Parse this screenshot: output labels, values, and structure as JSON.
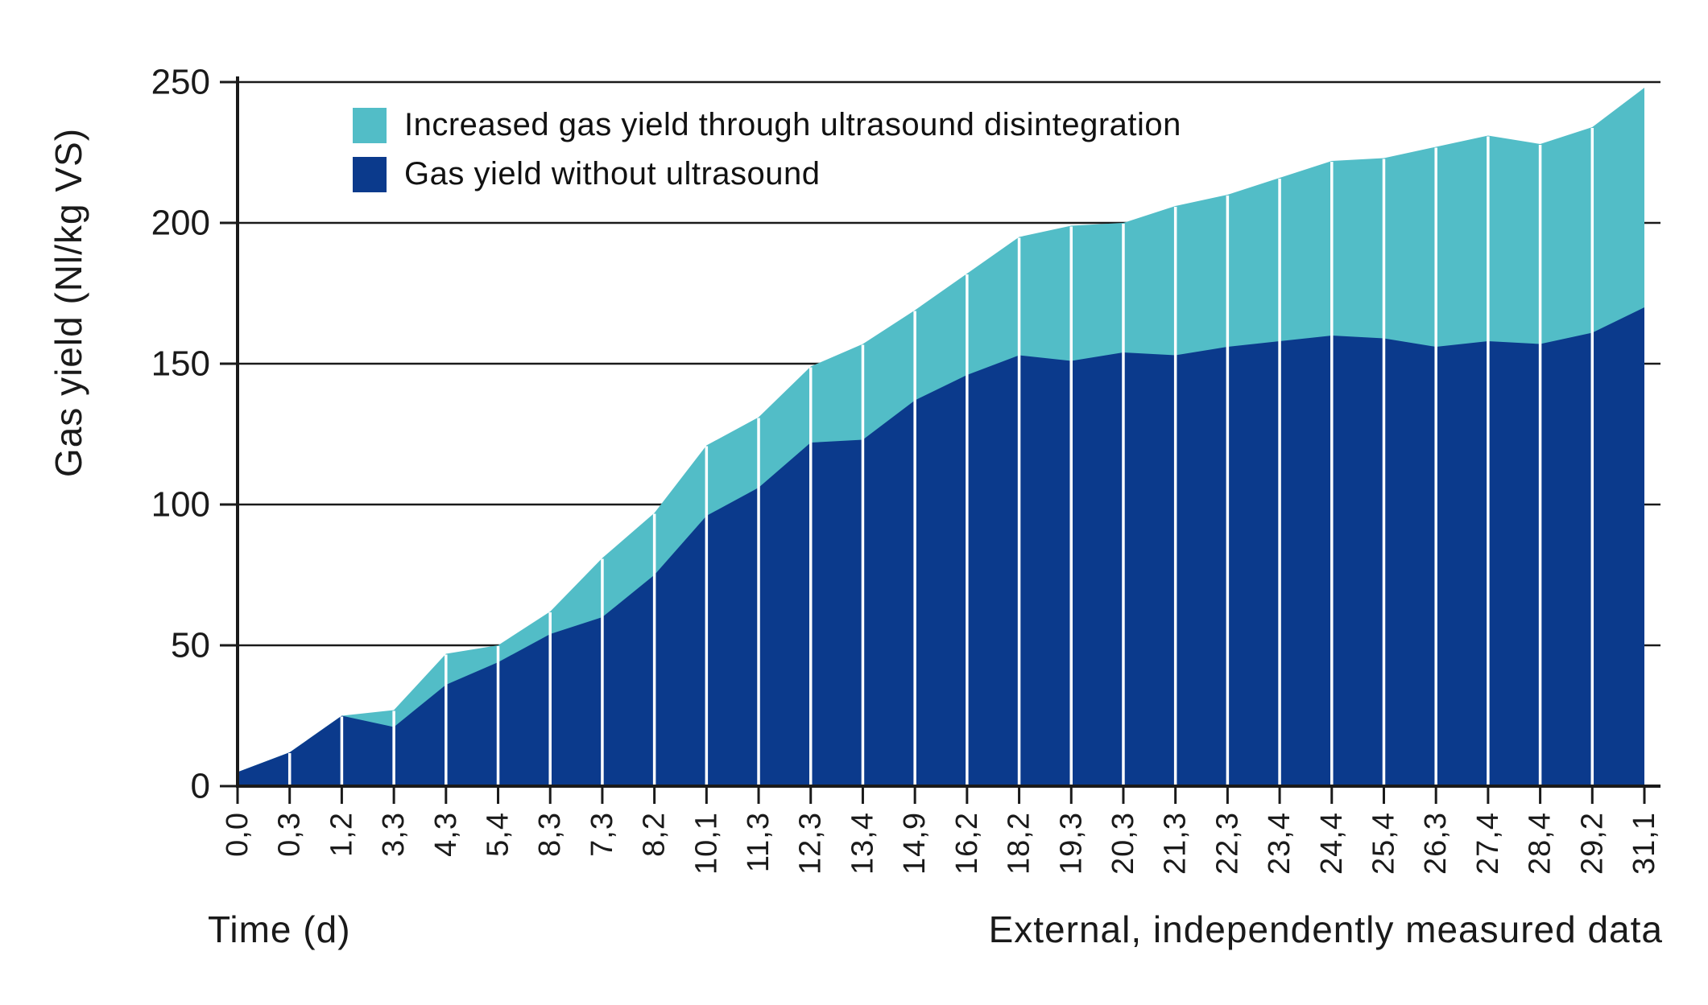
{
  "figure": {
    "y_axis_title": "Gas yield (Nl/kg VS)",
    "x_axis_title": "Time (d)",
    "footnote": "External, independently measured data"
  },
  "legend": [
    {
      "label": "Increased gas yield through ultrasound disintegration",
      "color": "#52bdc7"
    },
    {
      "label": "Gas yield without ultrasound",
      "color": "#0b3a8c"
    }
  ],
  "colors": {
    "navy": "#0b3a8c",
    "teal": "#52bdc7",
    "axis": "#1a1a1a",
    "text": "#1a1a1a",
    "separator": "#ffffff",
    "background": "#ffffff"
  },
  "chart_data": {
    "type": "area",
    "stacked": true,
    "title": "",
    "xlabel": "Time (d)",
    "ylabel": "Gas yield (Nl/kg VS)",
    "ylim": [
      0,
      250
    ],
    "yticks": [
      0,
      50,
      100,
      150,
      200,
      250
    ],
    "grid": "horizontal",
    "legend_position": "top-left-inside",
    "annotation": "External, independently measured data",
    "categories": [
      "0,0",
      "0,3",
      "1,2",
      "3,3",
      "4,3",
      "5,4",
      "8,3",
      "7,3",
      "8,2",
      "10,1",
      "11,3",
      "12,3",
      "13,4",
      "14,9",
      "16,2",
      "18,2",
      "19,3",
      "20,3",
      "21,3",
      "22,3",
      "23,4",
      "24,4",
      "25,4",
      "26,3",
      "27,4",
      "28,4",
      "29,2",
      "31,1"
    ],
    "series": [
      {
        "name": "Gas yield without ultrasound",
        "color": "#0b3a8c",
        "values": [
          5,
          12,
          25,
          21,
          36,
          44,
          54,
          60,
          75,
          96,
          106,
          122,
          123,
          137,
          146,
          153,
          151,
          154,
          153,
          156,
          158,
          160,
          159,
          156,
          158,
          157,
          161,
          170
        ]
      },
      {
        "name": "Increased gas yield through ultrasound disintegration",
        "color": "#52bdc7",
        "values": [
          0,
          0,
          0,
          6,
          11,
          6,
          8,
          21,
          22,
          25,
          25,
          27,
          34,
          32,
          36,
          42,
          48,
          46,
          53,
          54,
          58,
          62,
          64,
          71,
          73,
          71,
          73,
          78
        ]
      }
    ],
    "totals": [
      5,
      12,
      25,
      27,
      47,
      50,
      62,
      81,
      97,
      121,
      131,
      149,
      157,
      169,
      182,
      195,
      199,
      200,
      206,
      210,
      216,
      222,
      223,
      227,
      231,
      228,
      234,
      248
    ]
  }
}
